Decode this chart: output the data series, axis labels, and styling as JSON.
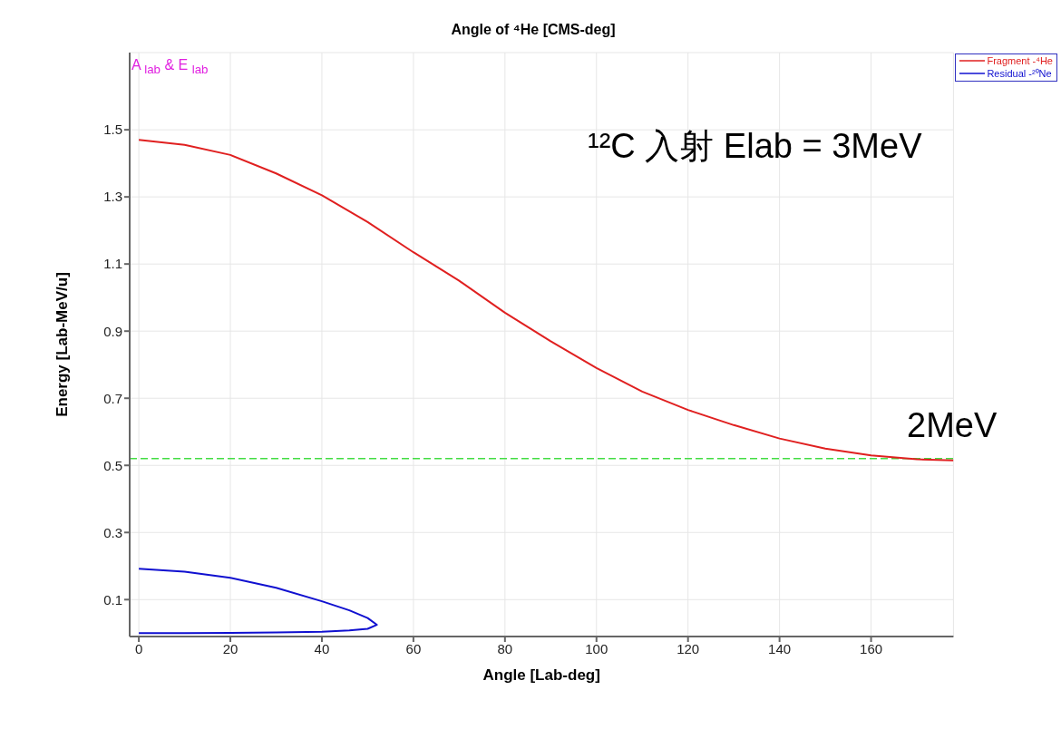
{
  "chart_data": {
    "type": "line",
    "title": "Angle of ⁴He [CMS-deg]",
    "xlabel": "Angle  [Lab-deg]",
    "ylabel": "Energy  [Lab-MeV/u]",
    "annotations": [
      "A $_{lab}$ & E $_{lab}$",
      "¹²C 入射 Elab = 3MeV",
      "2MeV"
    ],
    "xlim": [
      -2,
      178
    ],
    "xticks": [
      0,
      20,
      40,
      60,
      80,
      100,
      120,
      140,
      160
    ],
    "ylim": [
      -0.01,
      1.73
    ],
    "yticks": [
      0.1,
      0.3,
      0.5,
      0.7,
      0.9,
      1.1,
      1.3,
      1.5
    ],
    "grid": true,
    "legend": "top right",
    "marker": "none",
    "ref_lines": [
      {
        "axis": "y",
        "value": 0.52,
        "color": "#44dd44",
        "line_style": "dashed"
      }
    ],
    "series": [
      {
        "name": "Fragment -⁴He",
        "color": "#e02020",
        "x": [
          0,
          10,
          20,
          30,
          40,
          50,
          60,
          70,
          80,
          90,
          100,
          110,
          120,
          130,
          140,
          150,
          160,
          170,
          178
        ],
        "values": [
          1.47,
          1.455,
          1.425,
          1.37,
          1.305,
          1.225,
          1.135,
          1.05,
          0.955,
          0.87,
          0.79,
          0.72,
          0.665,
          0.62,
          0.58,
          0.55,
          0.53,
          0.518,
          0.515
        ]
      },
      {
        "name": "Residual -²⁰Ne",
        "color": "#1010d0",
        "x": [
          0,
          10,
          20,
          30,
          40,
          46,
          50,
          52,
          50,
          46,
          40,
          30,
          20,
          10,
          0
        ],
        "values": [
          0.192,
          0.183,
          0.165,
          0.135,
          0.095,
          0.068,
          0.045,
          0.025,
          0.013,
          0.008,
          0.004,
          0.002,
          0.001,
          0.0,
          0.0
        ]
      }
    ]
  }
}
